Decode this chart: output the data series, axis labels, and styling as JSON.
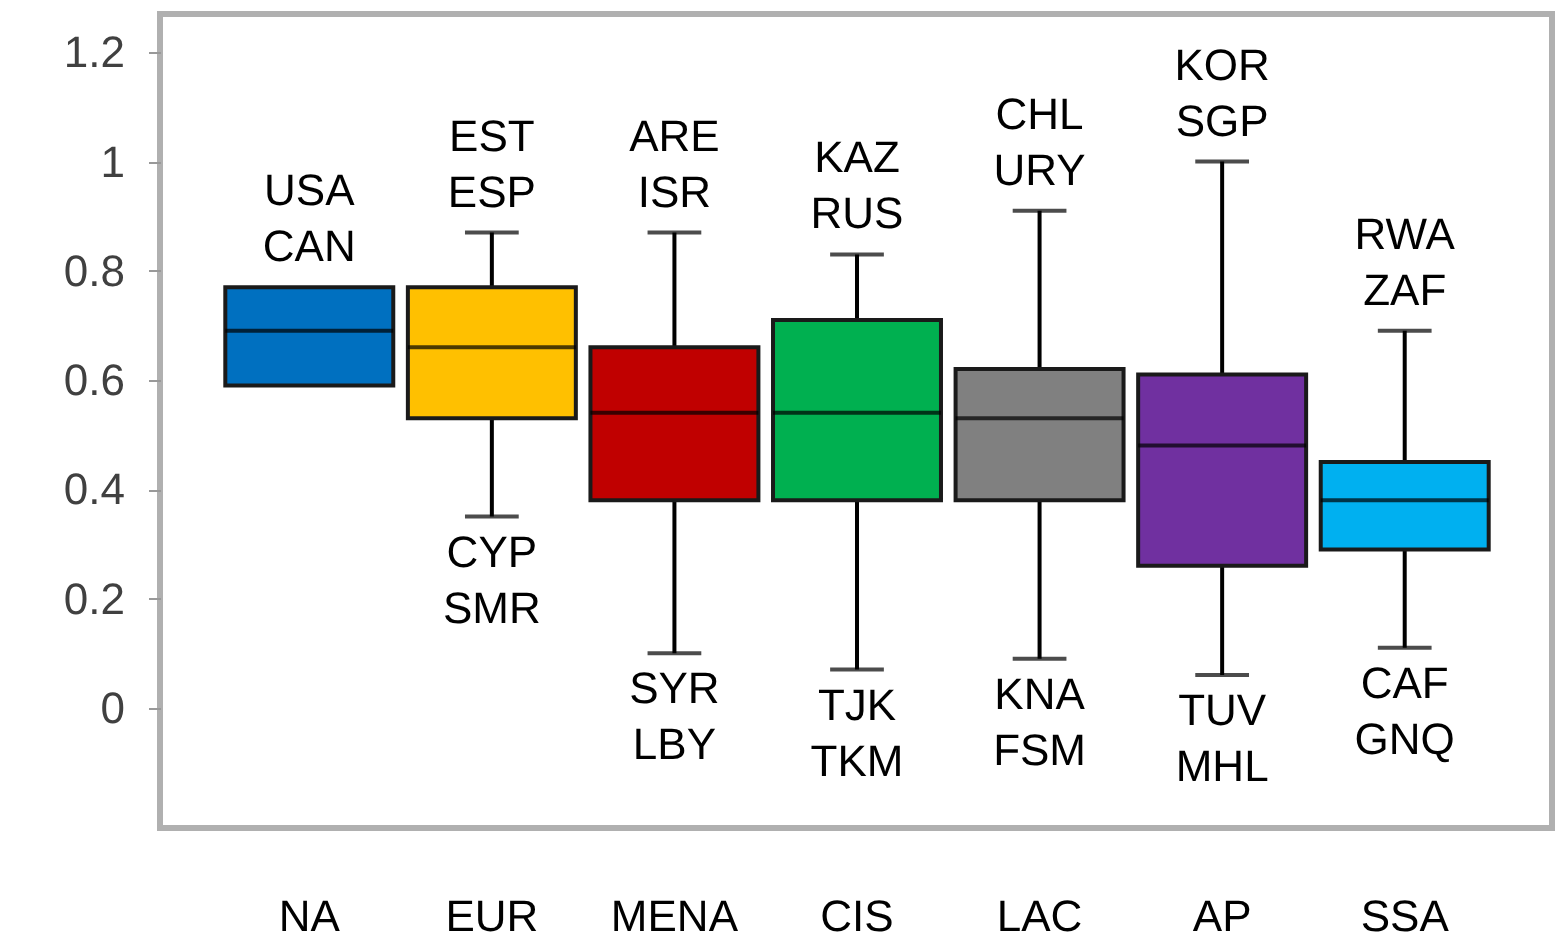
{
  "chart_data": {
    "type": "box",
    "categories": [
      "NA",
      "EUR",
      "MENA",
      "CIS",
      "LAC",
      "AP",
      "SSA"
    ],
    "colors": [
      "#0070c0",
      "#ffc000",
      "#c00000",
      "#00b050",
      "#808080",
      "#7030a0",
      "#00b0f0"
    ],
    "boxes": [
      {
        "low": 0.59,
        "q1": 0.59,
        "median": 0.69,
        "q3": 0.77,
        "high": 0.77
      },
      {
        "low": 0.35,
        "q1": 0.53,
        "median": 0.66,
        "q3": 0.77,
        "high": 0.87
      },
      {
        "low": 0.1,
        "q1": 0.38,
        "median": 0.54,
        "q3": 0.66,
        "high": 0.87
      },
      {
        "low": 0.07,
        "q1": 0.38,
        "median": 0.54,
        "q3": 0.71,
        "high": 0.83
      },
      {
        "low": 0.09,
        "q1": 0.38,
        "median": 0.53,
        "q3": 0.62,
        "high": 0.91
      },
      {
        "low": 0.06,
        "q1": 0.26,
        "median": 0.48,
        "q3": 0.61,
        "high": 1.0
      },
      {
        "low": 0.11,
        "q1": 0.29,
        "median": 0.38,
        "q3": 0.45,
        "high": 0.69
      }
    ],
    "ylim": [
      -0.22,
      1.27
    ],
    "yticks": [
      0,
      0.2,
      0.4,
      0.6,
      0.8,
      1,
      1.2
    ],
    "grid": false,
    "annotations": [
      {
        "text": "USA\nCAN",
        "x": "NA",
        "y": 0.77
      },
      {
        "text": "EST\nESP",
        "x": "EUR",
        "y": 0.87
      },
      {
        "text": "CYP\nSMR",
        "x": "EUR",
        "y": 0.35
      },
      {
        "text": "ARE\nISR",
        "x": "MENA",
        "y": 0.87
      },
      {
        "text": "SYR\nLBY",
        "x": "MENA",
        "y": 0.1
      },
      {
        "text": "KAZ\nRUS",
        "x": "CIS",
        "y": 0.83
      },
      {
        "text": "TJK\nTKM",
        "x": "CIS",
        "y": 0.07
      },
      {
        "text": "CHL\nURY",
        "x": "LAC",
        "y": 0.91
      },
      {
        "text": "KNA\nFSM",
        "x": "LAC",
        "y": 0.09
      },
      {
        "text": "KOR\nSGP",
        "x": "AP",
        "y": 1.0
      },
      {
        "text": "TUV\nMHL",
        "x": "AP",
        "y": 0.06
      },
      {
        "text": "RWA\nZAF",
        "x": "SSA",
        "y": 0.69
      },
      {
        "text": "CAF\nGNQ",
        "x": "SSA",
        "y": 0.11
      }
    ]
  }
}
